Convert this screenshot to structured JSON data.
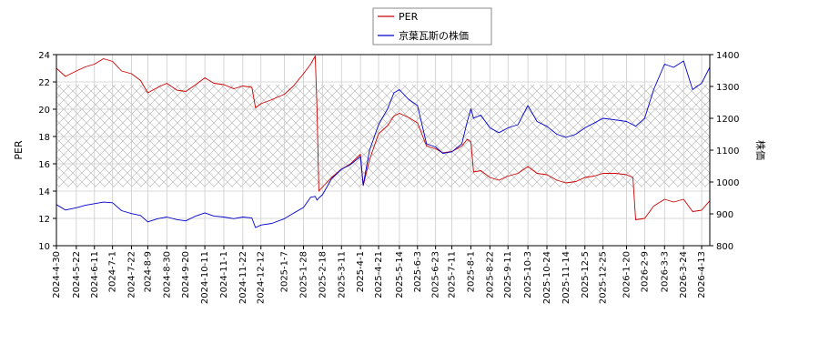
{
  "chart_data": {
    "type": "line",
    "title": "",
    "xlabel": "",
    "ylabel_left": "PER",
    "ylabel_right": "株価",
    "y_left": {
      "min": 10,
      "max": 24,
      "ticks": [
        "10",
        "12",
        "14",
        "16",
        "18",
        "20",
        "22",
        "24"
      ]
    },
    "y_right": {
      "min": 800,
      "max": 1400,
      "ticks": [
        "800",
        "900",
        "1000",
        "1100",
        "1200",
        "1300",
        "1400"
      ]
    },
    "x_range": [
      "2024-4-30",
      "2026-4-22"
    ],
    "x_ticks": [
      "2024-4-30",
      "2024-5-22",
      "2024-6-11",
      "2024-7-1",
      "2024-7-22",
      "2024-8-9",
      "2024-8-30",
      "2024-9-20",
      "2024-10-11",
      "2024-11-1",
      "2024-11-22",
      "2024-12-12",
      "2025-1-7",
      "2025-1-28",
      "2025-2-18",
      "2025-3-11",
      "2025-4-1",
      "2025-4-21",
      "2025-5-14",
      "2025-6-3",
      "2025-6-23",
      "2025-7-11",
      "2025-8-1",
      "2025-8-22",
      "2025-9-11",
      "2025-10-3",
      "2025-10-24",
      "2025-11-14",
      "2025-12-5",
      "2025-12-25",
      "2026-1-20",
      "2026-2-9",
      "2026-3-3",
      "2026-3-24",
      "2026-4-13"
    ],
    "grid": true,
    "legend_position": "top-center",
    "shaded_band": {
      "axis": "left",
      "from": 14.3,
      "to": 21.8
    },
    "series": [
      {
        "name": "PER",
        "axis": "left",
        "color": "#cc0000",
        "points": [
          [
            "2024-4-30",
            23.0
          ],
          [
            "2024-5-10",
            22.4
          ],
          [
            "2024-5-22",
            22.8
          ],
          [
            "2024-6-1",
            23.1
          ],
          [
            "2024-6-11",
            23.3
          ],
          [
            "2024-6-21",
            23.7
          ],
          [
            "2024-7-1",
            23.5
          ],
          [
            "2024-7-11",
            22.8
          ],
          [
            "2024-7-22",
            22.6
          ],
          [
            "2024-8-1",
            22.1
          ],
          [
            "2024-8-9",
            21.2
          ],
          [
            "2024-8-20",
            21.6
          ],
          [
            "2024-8-30",
            21.9
          ],
          [
            "2024-9-10",
            21.4
          ],
          [
            "2024-9-20",
            21.3
          ],
          [
            "2024-10-1",
            21.8
          ],
          [
            "2024-10-11",
            22.3
          ],
          [
            "2024-10-21",
            21.9
          ],
          [
            "2024-11-1",
            21.8
          ],
          [
            "2024-11-12",
            21.5
          ],
          [
            "2024-11-22",
            21.7
          ],
          [
            "2024-12-2",
            21.6
          ],
          [
            "2024-12-6",
            20.1
          ],
          [
            "2024-12-12",
            20.4
          ],
          [
            "2024-12-24",
            20.7
          ],
          [
            "2025-1-7",
            21.1
          ],
          [
            "2025-1-17",
            21.7
          ],
          [
            "2025-1-28",
            22.6
          ],
          [
            "2025-2-5",
            23.3
          ],
          [
            "2025-2-10",
            23.9
          ],
          [
            "2025-2-12",
            20.0
          ],
          [
            "2025-2-14",
            14.0
          ],
          [
            "2025-2-18",
            14.3
          ],
          [
            "2025-2-28",
            15.0
          ],
          [
            "2025-3-11",
            15.6
          ],
          [
            "2025-3-21",
            16.0
          ],
          [
            "2025-4-1",
            16.7
          ],
          [
            "2025-4-4",
            14.4
          ],
          [
            "2025-4-11",
            16.3
          ],
          [
            "2025-4-21",
            18.2
          ],
          [
            "2025-5-1",
            18.8
          ],
          [
            "2025-5-8",
            19.5
          ],
          [
            "2025-5-14",
            19.7
          ],
          [
            "2025-5-24",
            19.4
          ],
          [
            "2025-6-3",
            19.0
          ],
          [
            "2025-6-13",
            17.3
          ],
          [
            "2025-6-23",
            17.1
          ],
          [
            "2025-7-1",
            16.8
          ],
          [
            "2025-7-11",
            16.9
          ],
          [
            "2025-7-22",
            17.3
          ],
          [
            "2025-7-28",
            17.8
          ],
          [
            "2025-8-1",
            17.6
          ],
          [
            "2025-8-4",
            15.4
          ],
          [
            "2025-8-12",
            15.5
          ],
          [
            "2025-8-22",
            15.0
          ],
          [
            "2025-9-1",
            14.8
          ],
          [
            "2025-9-11",
            15.1
          ],
          [
            "2025-9-22",
            15.3
          ],
          [
            "2025-10-3",
            15.8
          ],
          [
            "2025-10-13",
            15.3
          ],
          [
            "2025-10-24",
            15.2
          ],
          [
            "2025-11-4",
            14.8
          ],
          [
            "2025-11-14",
            14.6
          ],
          [
            "2025-11-25",
            14.7
          ],
          [
            "2025-12-5",
            15.0
          ],
          [
            "2025-12-15",
            15.1
          ],
          [
            "2025-12-25",
            15.3
          ],
          [
            "2026-1-8",
            15.3
          ],
          [
            "2026-1-20",
            15.2
          ],
          [
            "2026-1-27",
            15.0
          ],
          [
            "2026-1-30",
            11.9
          ],
          [
            "2026-2-9",
            12.0
          ],
          [
            "2026-2-19",
            12.9
          ],
          [
            "2026-3-3",
            13.4
          ],
          [
            "2026-3-13",
            13.2
          ],
          [
            "2026-3-24",
            13.4
          ],
          [
            "2026-4-3",
            12.5
          ],
          [
            "2026-4-13",
            12.6
          ],
          [
            "2026-4-22",
            13.3
          ]
        ]
      },
      {
        "name": "京葉瓦斯の株価",
        "axis": "right",
        "color": "#0000cc",
        "points": [
          [
            "2024-4-30",
            929
          ],
          [
            "2024-5-10",
            912
          ],
          [
            "2024-5-22",
            919
          ],
          [
            "2024-6-1",
            927
          ],
          [
            "2024-6-11",
            932
          ],
          [
            "2024-6-21",
            937
          ],
          [
            "2024-7-1",
            935
          ],
          [
            "2024-7-11",
            910
          ],
          [
            "2024-7-22",
            901
          ],
          [
            "2024-8-1",
            895
          ],
          [
            "2024-8-9",
            875
          ],
          [
            "2024-8-20",
            885
          ],
          [
            "2024-8-30",
            890
          ],
          [
            "2024-9-10",
            882
          ],
          [
            "2024-9-20",
            878
          ],
          [
            "2024-10-1",
            893
          ],
          [
            "2024-10-11",
            903
          ],
          [
            "2024-10-21",
            893
          ],
          [
            "2024-11-1",
            890
          ],
          [
            "2024-11-12",
            885
          ],
          [
            "2024-11-22",
            890
          ],
          [
            "2024-12-2",
            887
          ],
          [
            "2024-12-6",
            857
          ],
          [
            "2024-12-12",
            865
          ],
          [
            "2024-12-24",
            870
          ],
          [
            "2025-1-7",
            885
          ],
          [
            "2025-1-17",
            902
          ],
          [
            "2025-1-28",
            920
          ],
          [
            "2025-2-5",
            952
          ],
          [
            "2025-2-10",
            955
          ],
          [
            "2025-2-12",
            943
          ],
          [
            "2025-2-14",
            950
          ],
          [
            "2025-2-18",
            960
          ],
          [
            "2025-2-28",
            1010
          ],
          [
            "2025-3-11",
            1040
          ],
          [
            "2025-3-21",
            1055
          ],
          [
            "2025-4-1",
            1080
          ],
          [
            "2025-4-4",
            990
          ],
          [
            "2025-4-11",
            1100
          ],
          [
            "2025-4-21",
            1180
          ],
          [
            "2025-5-1",
            1230
          ],
          [
            "2025-5-8",
            1280
          ],
          [
            "2025-5-14",
            1290
          ],
          [
            "2025-5-24",
            1260
          ],
          [
            "2025-6-3",
            1240
          ],
          [
            "2025-6-13",
            1120
          ],
          [
            "2025-6-23",
            1110
          ],
          [
            "2025-7-1",
            1090
          ],
          [
            "2025-7-11",
            1095
          ],
          [
            "2025-7-22",
            1120
          ],
          [
            "2025-7-28",
            1190
          ],
          [
            "2025-8-1",
            1230
          ],
          [
            "2025-8-4",
            1200
          ],
          [
            "2025-8-12",
            1210
          ],
          [
            "2025-8-22",
            1170
          ],
          [
            "2025-9-1",
            1155
          ],
          [
            "2025-9-11",
            1170
          ],
          [
            "2025-9-22",
            1180
          ],
          [
            "2025-10-3",
            1240
          ],
          [
            "2025-10-13",
            1190
          ],
          [
            "2025-10-24",
            1175
          ],
          [
            "2025-11-4",
            1150
          ],
          [
            "2025-11-14",
            1140
          ],
          [
            "2025-11-25",
            1150
          ],
          [
            "2025-12-5",
            1170
          ],
          [
            "2025-12-15",
            1185
          ],
          [
            "2025-12-25",
            1200
          ],
          [
            "2026-1-8",
            1195
          ],
          [
            "2026-1-20",
            1190
          ],
          [
            "2026-1-27",
            1180
          ],
          [
            "2026-1-30",
            1175
          ],
          [
            "2026-2-9",
            1200
          ],
          [
            "2026-2-19",
            1290
          ],
          [
            "2026-3-3",
            1370
          ],
          [
            "2026-3-13",
            1360
          ],
          [
            "2026-3-24",
            1380
          ],
          [
            "2026-4-3",
            1290
          ],
          [
            "2026-4-13",
            1310
          ],
          [
            "2026-4-22",
            1360
          ]
        ]
      }
    ]
  }
}
